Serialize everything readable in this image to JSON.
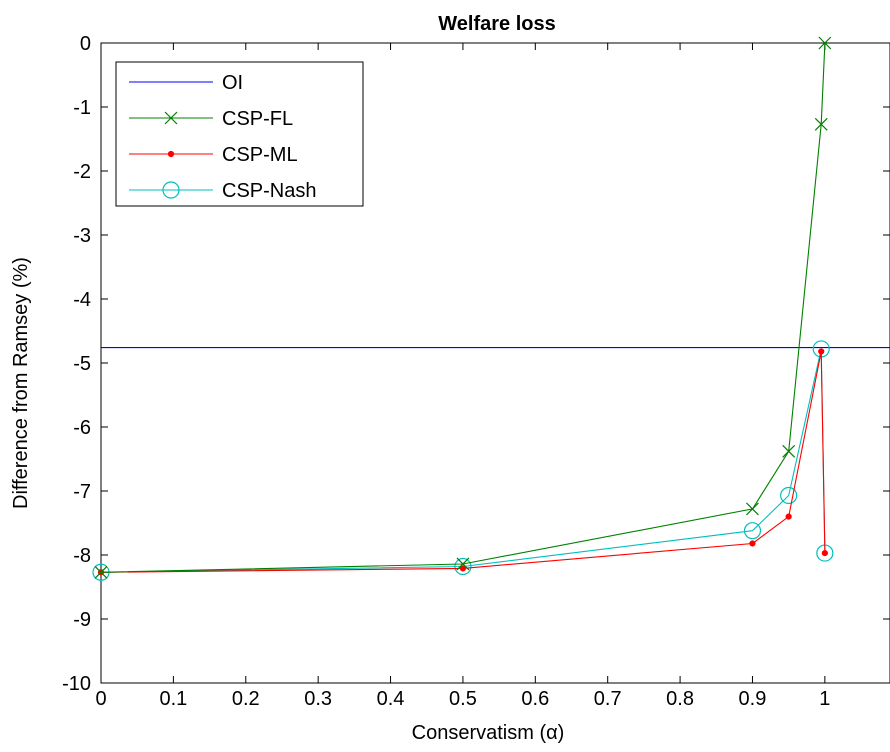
{
  "chart_data": {
    "type": "line",
    "title": "Welfare loss",
    "xlabel": "Conservatism (α)",
    "ylabel": "Difference from Ramsey (%)",
    "xlim": [
      0,
      1.09
    ],
    "ylim": [
      -10,
      0
    ],
    "grid": false,
    "legend_position": "top-left",
    "x_ticks": [
      {
        "value": 0,
        "label": "0"
      },
      {
        "value": 0.1,
        "label": "0.1"
      },
      {
        "value": 0.2,
        "label": "0.2"
      },
      {
        "value": 0.3,
        "label": "0.3"
      },
      {
        "value": 0.4,
        "label": "0.4"
      },
      {
        "value": 0.5,
        "label": "0.5"
      },
      {
        "value": 0.6,
        "label": "0.6"
      },
      {
        "value": 0.7,
        "label": "0.7"
      },
      {
        "value": 0.8,
        "label": "0.8"
      },
      {
        "value": 0.9,
        "label": "0.9"
      },
      {
        "value": 1.0,
        "label": "1"
      }
    ],
    "y_ticks": [
      {
        "value": 0,
        "label": "0"
      },
      {
        "value": -1,
        "label": "-1"
      },
      {
        "value": -2,
        "label": "-2"
      },
      {
        "value": -3,
        "label": "-3"
      },
      {
        "value": -4,
        "label": "-4"
      },
      {
        "value": -5,
        "label": "-5"
      },
      {
        "value": -6,
        "label": "-6"
      },
      {
        "value": -7,
        "label": "-7"
      },
      {
        "value": -8,
        "label": "-8"
      },
      {
        "value": -9,
        "label": "-9"
      },
      {
        "value": -10,
        "label": "-10"
      }
    ],
    "series": [
      {
        "name": "OI",
        "color": "#0000ff",
        "marker": "none",
        "x": [
          0,
          1.09
        ],
        "y": [
          -4.76,
          -4.76
        ]
      },
      {
        "name": "CSP-FL",
        "color": "#008000",
        "marker": "x",
        "x": [
          0,
          0.5,
          0.9,
          0.95,
          0.995,
          1.0
        ],
        "y": [
          -8.27,
          -8.14,
          -7.28,
          -6.38,
          -1.27,
          0.0
        ]
      },
      {
        "name": "CSP-ML",
        "color": "#ff0000",
        "marker": "dot",
        "x": [
          0,
          0.5,
          0.9,
          0.95,
          0.995,
          1.0
        ],
        "y": [
          -8.27,
          -8.21,
          -7.82,
          -7.4,
          -4.82,
          -7.97
        ]
      },
      {
        "name": "CSP-Nash",
        "color": "#00bfbf",
        "marker": "circle",
        "x": [
          0,
          0.5,
          0.9,
          0.95,
          0.995,
          1.0
        ],
        "y": [
          -8.27,
          -8.18,
          -7.62,
          -7.07,
          -4.78,
          -7.97
        ]
      }
    ]
  }
}
